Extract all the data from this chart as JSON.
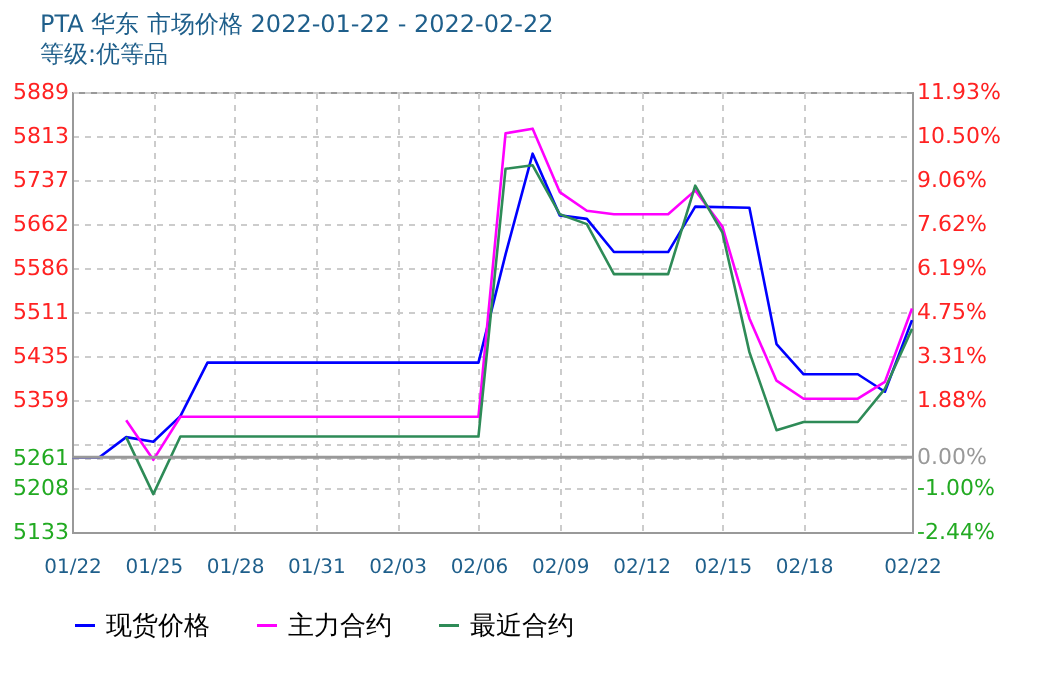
{
  "chart_data": {
    "type": "line",
    "title": "PTA 华东 市场价格 2022-01-22 - 2022-02-22",
    "subtitle": "等级:优等品",
    "series": [
      {
        "name": "现货价格",
        "color": "#0000ff",
        "x": [
          "2022-01-22",
          "2022-01-23",
          "2022-01-24",
          "2022-01-25",
          "2022-01-26",
          "2022-01-27",
          "2022-02-06",
          "2022-02-07",
          "2022-02-08",
          "2022-02-09",
          "2022-02-10",
          "2022-02-11",
          "2022-02-13",
          "2022-02-14",
          "2022-02-16",
          "2022-02-17",
          "2022-02-18",
          "2022-02-20",
          "2022-02-21",
          "2022-02-22"
        ],
        "values": [
          5261,
          5261,
          5296,
          5288,
          5332,
          5424,
          5424,
          5610,
          5783,
          5677,
          5671,
          5614,
          5614,
          5692,
          5690,
          5456,
          5404,
          5404,
          5374,
          5497
        ]
      },
      {
        "name": "主力合约",
        "color": "#ff00ff",
        "x": [
          "2022-01-24",
          "2022-01-25",
          "2022-01-26",
          "2022-02-06",
          "2022-02-07",
          "2022-02-08",
          "2022-02-09",
          "2022-02-10",
          "2022-02-11",
          "2022-02-13",
          "2022-02-14",
          "2022-02-15",
          "2022-02-16",
          "2022-02-17",
          "2022-02-18",
          "2022-02-20",
          "2022-02-21",
          "2022-02-22"
        ],
        "values": [
          5325,
          5257,
          5331,
          5331,
          5818,
          5826,
          5717,
          5685,
          5679,
          5679,
          5720,
          5658,
          5500,
          5393,
          5362,
          5362,
          5391,
          5517
        ]
      },
      {
        "name": "最近合约",
        "color": "#2e8b57",
        "x": [
          "2022-01-24",
          "2022-01-25",
          "2022-01-26",
          "2022-02-06",
          "2022-02-07",
          "2022-02-08",
          "2022-02-09",
          "2022-02-10",
          "2022-02-11",
          "2022-02-13",
          "2022-02-14",
          "2022-02-15",
          "2022-02-16",
          "2022-02-17",
          "2022-02-18",
          "2022-02-20",
          "2022-02-21",
          "2022-02-22"
        ],
        "values": [
          5296,
          5198,
          5297,
          5297,
          5757,
          5763,
          5679,
          5662,
          5576,
          5576,
          5728,
          5648,
          5442,
          5308,
          5322,
          5322,
          5379,
          5482
        ]
      }
    ],
    "xlim": [
      "2022-01-22",
      "2022-02-22"
    ],
    "xticks": [
      {
        "value": "2022-01-22",
        "label": "01/22"
      },
      {
        "value": "2022-01-25",
        "label": "01/25"
      },
      {
        "value": "2022-01-28",
        "label": "01/28"
      },
      {
        "value": "2022-01-31",
        "label": "01/31"
      },
      {
        "value": "2022-02-03",
        "label": "02/03"
      },
      {
        "value": "2022-02-06",
        "label": "02/06"
      },
      {
        "value": "2022-02-09",
        "label": "02/09"
      },
      {
        "value": "2022-02-12",
        "label": "02/12"
      },
      {
        "value": "2022-02-15",
        "label": "02/15"
      },
      {
        "value": "2022-02-18",
        "label": "02/18"
      },
      {
        "value": "2022-02-22",
        "label": "02/22"
      }
    ],
    "ylim": [
      5133,
      5889
    ],
    "yticks": [
      5133,
      5208,
      5261,
      {
        "value": 5284,
        "label": null
      },
      5359,
      5435,
      5511,
      5586,
      5662,
      5737,
      5813,
      5889
    ],
    "y2lim": [
      -2.44,
      11.93
    ],
    "y2ticks": [
      {
        "value": -2.44,
        "label": "-2.44%"
      },
      {
        "value": -1.0,
        "label": "-1.00%"
      },
      {
        "value": 0,
        "label": "0.00%"
      },
      {
        "value": 1.88,
        "label": "1.88%"
      },
      {
        "value": 3.31,
        "label": "3.31%"
      },
      {
        "value": 4.75,
        "label": "4.75%"
      },
      {
        "value": 6.19,
        "label": "6.19%"
      },
      {
        "value": 7.62,
        "label": "7.62%"
      },
      {
        "value": 9.06,
        "label": "9.06%"
      },
      {
        "value": 10.5,
        "label": "10.50%"
      },
      {
        "value": 11.93,
        "label": "11.93%"
      }
    ],
    "ref_lines": [
      {
        "axis": "y2",
        "value": 0,
        "color": "#999999"
      }
    ],
    "grid": true,
    "legend": "bottom",
    "marker": "none",
    "line_style": "solid"
  }
}
